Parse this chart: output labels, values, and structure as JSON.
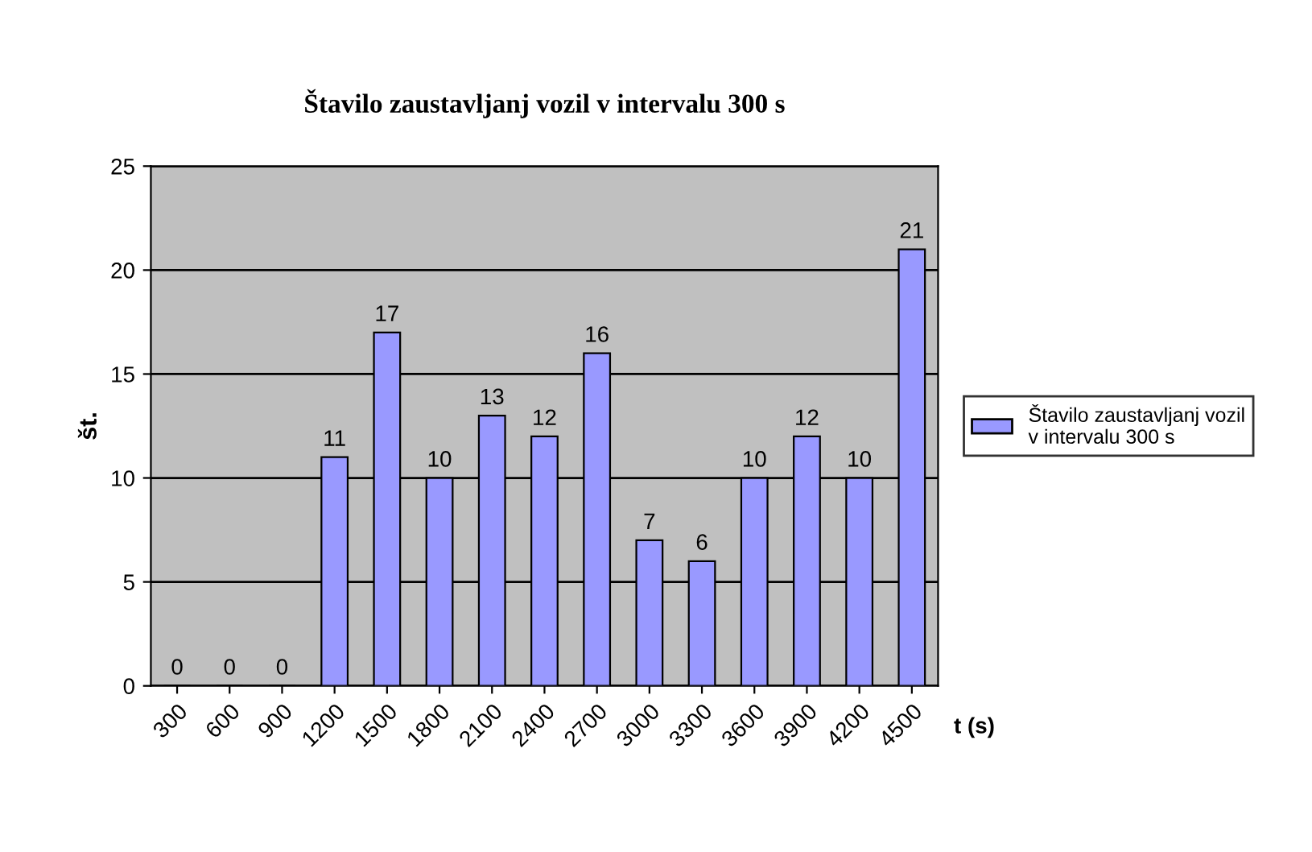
{
  "chart_data": {
    "type": "bar",
    "title": "Štavilo zaustavljanj vozil v intervalu 300 s",
    "xlabel": "t (s)",
    "ylabel": "št.",
    "categories": [
      "300",
      "600",
      "900",
      "1200",
      "1500",
      "1800",
      "2100",
      "2400",
      "2700",
      "3000",
      "3300",
      "3600",
      "3900",
      "4200",
      "4500"
    ],
    "series": [
      {
        "name": "Štavilo zaustavljanj vozil\nv intervalu 300 s",
        "color": "#9999ff",
        "values": [
          0,
          0,
          0,
          11,
          17,
          10,
          13,
          12,
          16,
          7,
          6,
          10,
          12,
          10,
          21
        ]
      }
    ],
    "ylim": [
      0,
      25
    ],
    "yticks": [
      0,
      5,
      10,
      15,
      20,
      25
    ],
    "grid": "y",
    "legend": "right",
    "data_labels": true
  }
}
